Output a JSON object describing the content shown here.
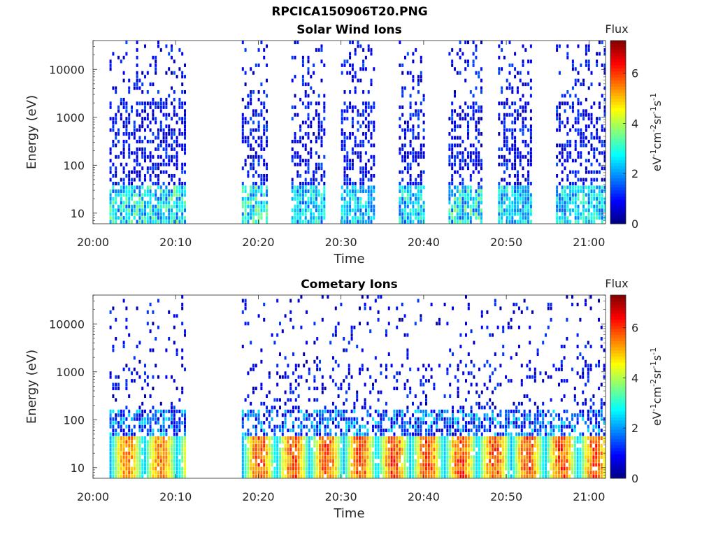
{
  "figure": {
    "title": "RPCICA150906T20.PNG"
  },
  "colorbar": {
    "label": "Flux",
    "units_base": "eV",
    "units_text": "eV-1cm-2sr-1s-1",
    "ticks": [
      "0",
      "2",
      "4",
      "6"
    ],
    "range": [
      0,
      7.3
    ]
  },
  "chart_data": [
    {
      "type": "heatmap",
      "title": "Solar Wind Ions",
      "xlabel": "Time",
      "ylabel": "Energy (eV)",
      "x_ticks": [
        "20:00",
        "20:10",
        "20:20",
        "20:30",
        "20:40",
        "20:50",
        "21:00"
      ],
      "y_ticks": [
        "10",
        "100",
        "1000",
        "10000"
      ],
      "y_scale": "log",
      "ylim": [
        6,
        40000
      ],
      "xlim": [
        "20:00",
        "21:02"
      ],
      "colorbar": {
        "label": "Flux",
        "range": [
          0,
          7.3
        ]
      },
      "scan_intervals": [
        {
          "start": "20:02",
          "end": "20:11",
          "peak_flux": 3.5
        },
        {
          "start": "20:18",
          "end": "20:21",
          "peak_flux": 3.5
        },
        {
          "start": "20:24",
          "end": "20:28",
          "peak_flux": 3.0
        },
        {
          "start": "20:30",
          "end": "20:34",
          "peak_flux": 3.0
        },
        {
          "start": "20:37",
          "end": "20:40",
          "peak_flux": 3.0
        },
        {
          "start": "20:43",
          "end": "20:47",
          "peak_flux": 3.5
        },
        {
          "start": "20:49",
          "end": "20:53",
          "peak_flux": 3.0
        },
        {
          "start": "20:56",
          "end": "21:02",
          "peak_flux": 3.0
        }
      ]
    },
    {
      "type": "heatmap",
      "title": "Cometary Ions",
      "xlabel": "Time",
      "ylabel": "Energy (eV)",
      "x_ticks": [
        "20:00",
        "20:10",
        "20:20",
        "20:30",
        "20:40",
        "20:50",
        "21:00"
      ],
      "y_ticks": [
        "10",
        "100",
        "1000",
        "10000"
      ],
      "y_scale": "log",
      "ylim": [
        6,
        40000
      ],
      "xlim": [
        "20:00",
        "21:02"
      ],
      "colorbar": {
        "label": "Flux",
        "range": [
          0,
          7.3
        ]
      },
      "scan_intervals": [
        {
          "start": "20:02",
          "end": "20:11",
          "peak_flux": 6.0
        },
        {
          "start": "20:18",
          "end": "21:02",
          "peak_flux": 6.5
        }
      ]
    }
  ]
}
